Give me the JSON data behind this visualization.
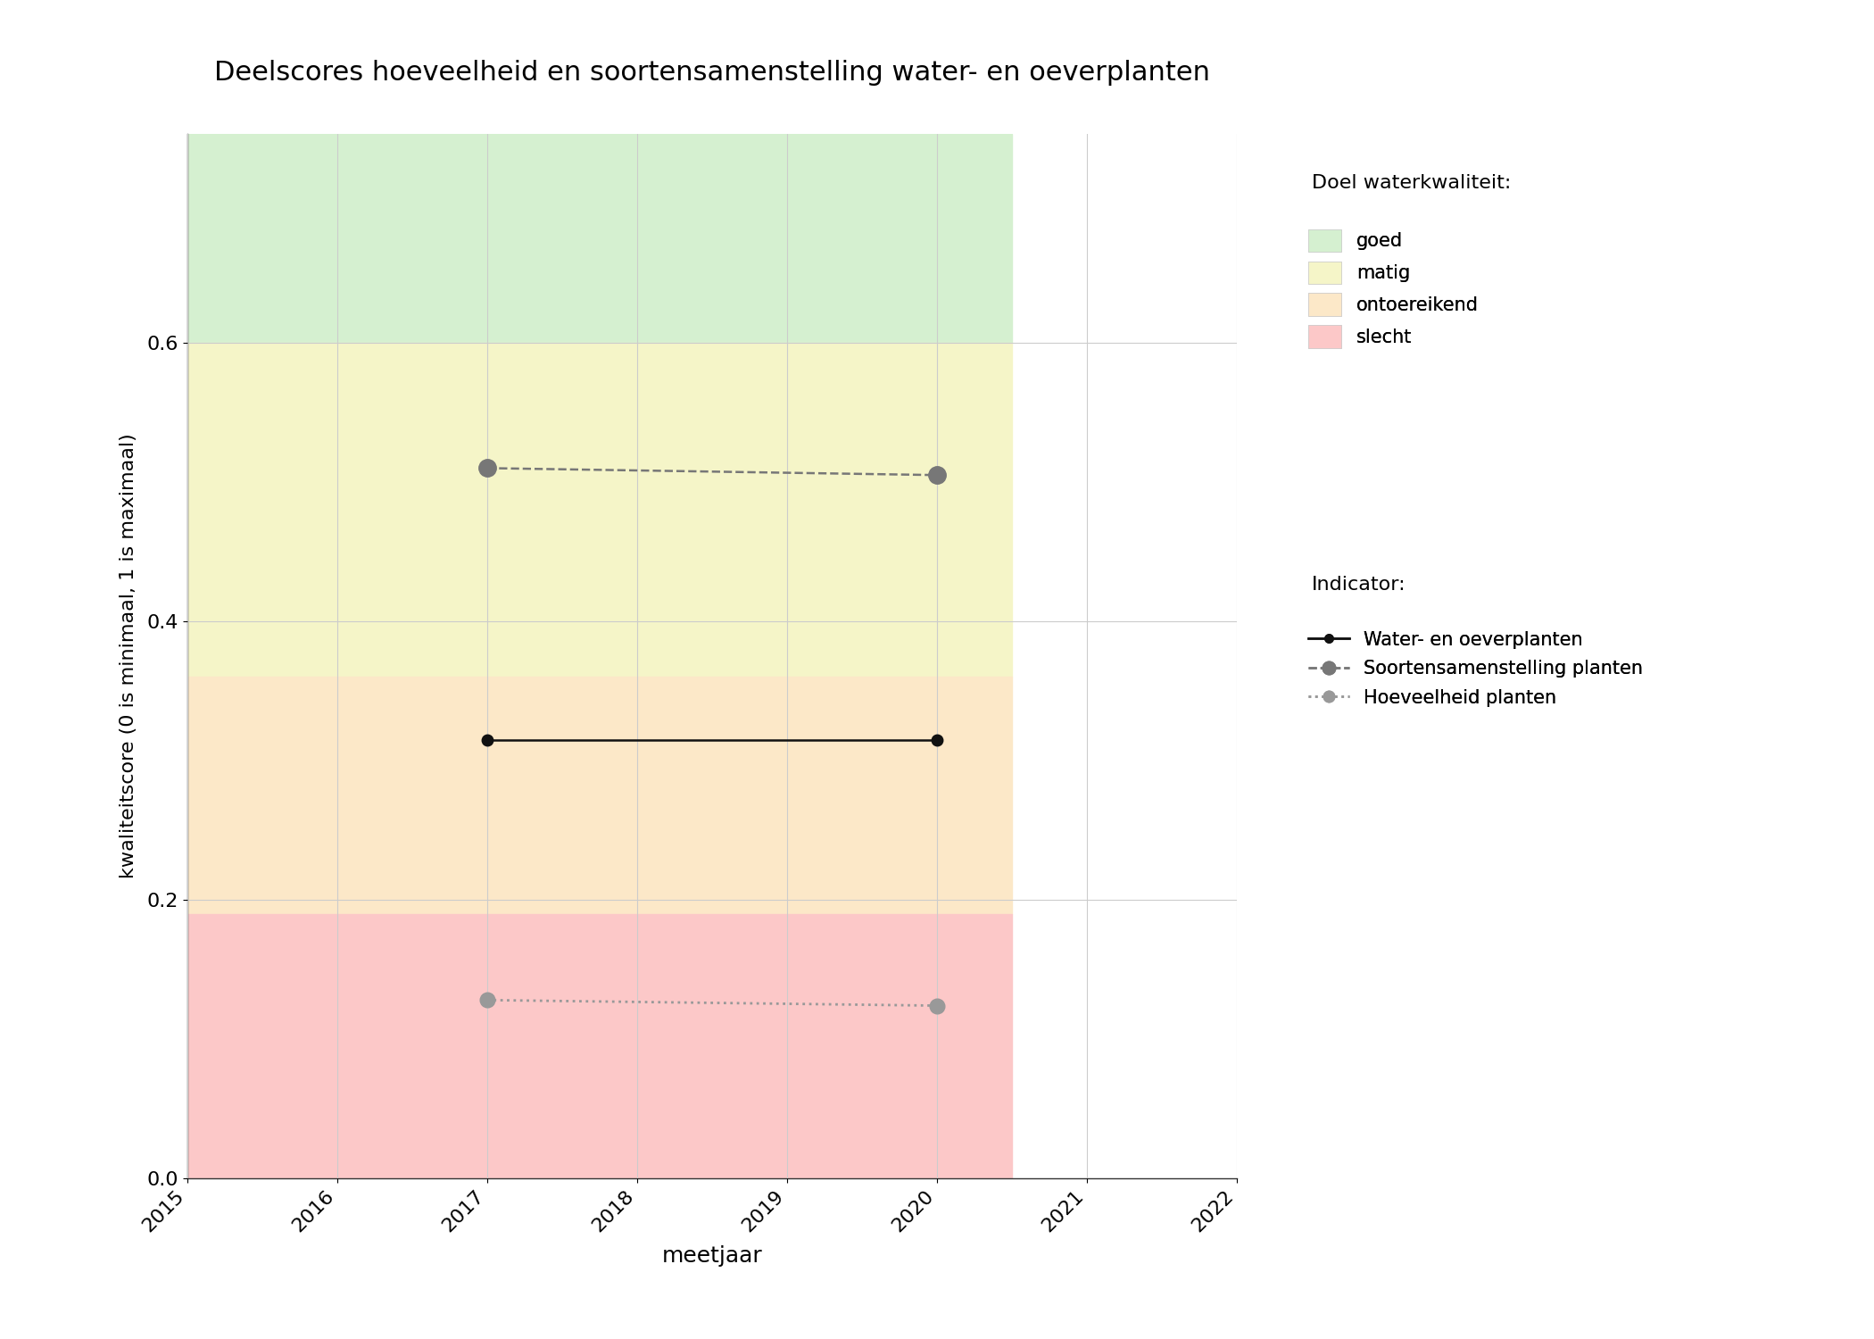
{
  "title": "Deelscores hoeveelheid en soortensamenstelling water- en oeverplanten",
  "xlabel": "meetjaar",
  "ylabel": "kwaliteitscore (0 is minimaal, 1 is maximaal)",
  "xlim": [
    2015,
    2022
  ],
  "ylim": [
    0.0,
    0.75
  ],
  "xticks": [
    2015,
    2016,
    2017,
    2018,
    2019,
    2020,
    2021,
    2022
  ],
  "yticks": [
    0.0,
    0.2,
    0.4,
    0.6
  ],
  "plot_xlim_bg": [
    2015,
    2020.5
  ],
  "zones": [
    {
      "name": "goed",
      "ymin": 0.6,
      "ymax": 0.75,
      "color": "#d5f0d0"
    },
    {
      "name": "matig",
      "ymin": 0.36,
      "ymax": 0.6,
      "color": "#f5f5c8"
    },
    {
      "name": "ontoereikend",
      "ymin": 0.19,
      "ymax": 0.36,
      "color": "#fce8c8"
    },
    {
      "name": "slecht",
      "ymin": 0.0,
      "ymax": 0.19,
      "color": "#fcc8c8"
    }
  ],
  "series": {
    "water_oever": {
      "years": [
        2017,
        2020
      ],
      "values": [
        0.315,
        0.315
      ],
      "color": "#111111",
      "linestyle": "solid",
      "linewidth": 1.8,
      "markersize": 9,
      "label": "Water- en oeverplanten"
    },
    "soortensamenstelling": {
      "years": [
        2017,
        2020
      ],
      "values": [
        0.51,
        0.505
      ],
      "color": "#777777",
      "linestyle": "dashed",
      "linewidth": 1.8,
      "markersize": 14,
      "label": "Soortensamenstelling planten"
    },
    "hoeveelheid": {
      "years": [
        2017,
        2020
      ],
      "values": [
        0.128,
        0.124
      ],
      "color": "#999999",
      "linestyle": "dotted",
      "linewidth": 2.0,
      "markersize": 12,
      "label": "Hoeveelheid planten"
    }
  },
  "legend_title_doel": "Doel waterkwaliteit:",
  "legend_title_indicator": "Indicator:",
  "zone_labels_ordered": [
    "goed",
    "matig",
    "ontoereikend",
    "slecht"
  ],
  "zone_colors_ordered": [
    "#d5f0d0",
    "#f5f5c8",
    "#fce8c8",
    "#fcc8c8"
  ],
  "grid_color": "#cccccc",
  "bg_color": "#ffffff",
  "tick_fontsize": 16,
  "label_fontsize": 18,
  "title_fontsize": 22
}
